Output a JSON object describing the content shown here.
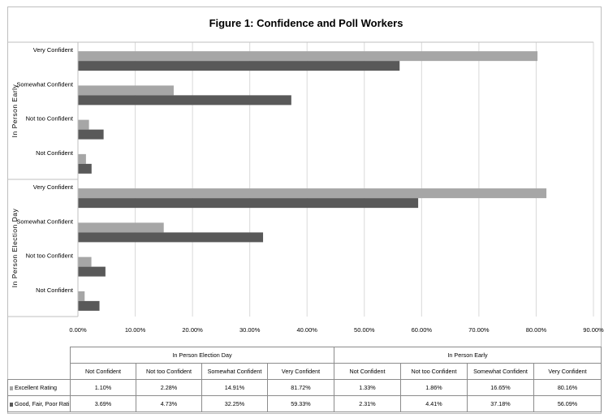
{
  "chart_data": {
    "type": "bar",
    "orientation": "horizontal",
    "title": "Figure 1:  Confidence and Poll Workers",
    "groups": [
      "In Person Election Day",
      "In Person Early"
    ],
    "categories": [
      "Not Confident",
      "Not too Confident",
      "Somewhat Confident",
      "Very Confident"
    ],
    "series": [
      {
        "name": "Excellent Rating",
        "color": "#a6a6a6",
        "values": [
          [
            1.1,
            2.28,
            14.91,
            81.72
          ],
          [
            1.33,
            1.86,
            16.65,
            80.16
          ]
        ],
        "labels": [
          [
            "1.10%",
            "2.28%",
            "14.91%",
            "81.72%"
          ],
          [
            "1.33%",
            "1.86%",
            "16.65%",
            "80.16%"
          ]
        ]
      },
      {
        "name": "Good, Fair, Poor Rating",
        "color": "#595959",
        "values": [
          [
            3.69,
            4.73,
            32.25,
            59.33
          ],
          [
            2.31,
            4.41,
            37.18,
            56.09
          ]
        ],
        "labels": [
          [
            "3.69%",
            "4.73%",
            "32.25%",
            "59.33%"
          ],
          [
            "2.31%",
            "4.41%",
            "37.18%",
            "56.09%"
          ]
        ]
      }
    ],
    "xlim": [
      0,
      90
    ],
    "xticks": [
      "0.00%",
      "10.00%",
      "20.00%",
      "30.00%",
      "40.00%",
      "50.00%",
      "60.00%",
      "70.00%",
      "80.00%",
      "90.00%"
    ],
    "grid": true,
    "legend": "data-table"
  }
}
